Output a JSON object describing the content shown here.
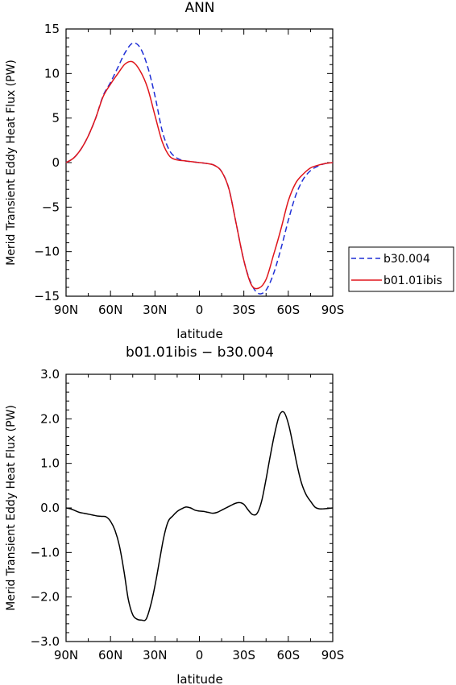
{
  "chart_data": [
    {
      "type": "line",
      "title": "ANN",
      "xlabel": "latitude",
      "ylabel": "Merid Transient Eddy Heat Flux (PW)",
      "x_ticks": [
        "90N",
        "60N",
        "30N",
        "0",
        "30S",
        "60S",
        "90S"
      ],
      "y_ticks": [
        "15",
        "10",
        "5",
        "0",
        "−5",
        "−10",
        "−15"
      ],
      "xlim": [
        90,
        -90
      ],
      "ylim": [
        -15,
        15
      ],
      "legend": "outside-right",
      "series": [
        {
          "name": "b30.004",
          "color": "#1f2fd6",
          "dash": "dashed",
          "x": [
            90,
            85,
            80,
            75,
            70,
            65,
            60,
            55,
            50,
            45,
            40,
            35,
            30,
            25,
            20,
            15,
            10,
            5,
            0,
            -5,
            -10,
            -15,
            -20,
            -25,
            -30,
            -35,
            -40,
            -45,
            -50,
            -55,
            -60,
            -65,
            -70,
            -75,
            -80,
            -85,
            -90
          ],
          "y": [
            0,
            0.5,
            1.5,
            3,
            5,
            7.5,
            9,
            10.7,
            12.4,
            13.4,
            12.9,
            10.8,
            7.5,
            3.5,
            1.3,
            0.5,
            0.2,
            0.1,
            0,
            -0.1,
            -0.3,
            -1,
            -3,
            -7,
            -11,
            -13.6,
            -14.7,
            -14.3,
            -12.5,
            -9.7,
            -6.5,
            -3.7,
            -1.9,
            -0.9,
            -0.4,
            -0.1,
            0
          ]
        },
        {
          "name": "b01.01ibis",
          "color": "#e0151b",
          "dash": "solid",
          "x": [
            90,
            85,
            80,
            75,
            70,
            65,
            60,
            55,
            50,
            45,
            40,
            35,
            30,
            25,
            20,
            15,
            10,
            5,
            0,
            -5,
            -10,
            -15,
            -20,
            -25,
            -30,
            -35,
            -40,
            -45,
            -50,
            -55,
            -60,
            -65,
            -70,
            -75,
            -80,
            -85,
            -90
          ],
          "y": [
            0,
            0.5,
            1.5,
            3,
            5,
            7.4,
            8.8,
            10,
            11.1,
            11.3,
            10.3,
            8.4,
            5.3,
            2.3,
            0.7,
            0.3,
            0.2,
            0.1,
            0,
            -0.1,
            -0.3,
            -1,
            -3,
            -7,
            -11,
            -13.7,
            -14.1,
            -13.1,
            -10.4,
            -7.5,
            -4.3,
            -2.3,
            -1.3,
            -0.6,
            -0.3,
            -0.1,
            0
          ]
        }
      ]
    },
    {
      "type": "line",
      "title": "b01.01ibis − b30.004",
      "xlabel": "latitude",
      "ylabel": "Merid Transient Eddy Heat Flux (PW)",
      "x_ticks": [
        "90N",
        "60N",
        "30N",
        "0",
        "30S",
        "60S",
        "90S"
      ],
      "y_ticks": [
        "3.0",
        "2.0",
        "1.0",
        "0.0",
        "−1.0",
        "−2.0",
        "−3.0"
      ],
      "xlim": [
        90,
        -90
      ],
      "ylim": [
        -3,
        3
      ],
      "series": [
        {
          "color": "#000000",
          "dash": "solid",
          "x": [
            90,
            87,
            84,
            81,
            78,
            75,
            72,
            69,
            66,
            63,
            60,
            57,
            54,
            51,
            48,
            45,
            42,
            39,
            36,
            33,
            30,
            27,
            24,
            21,
            18,
            15,
            12,
            9,
            6,
            3,
            0,
            -3,
            -6,
            -9,
            -12,
            -15,
            -18,
            -21,
            -24,
            -27,
            -30,
            -33,
            -36,
            -39,
            -42,
            -45,
            -48,
            -51,
            -54,
            -57,
            -60,
            -63,
            -66,
            -69,
            -72,
            -75,
            -78,
            -81,
            -84,
            -87,
            -90
          ],
          "y": [
            0,
            -0.02,
            -0.06,
            -0.1,
            -0.12,
            -0.14,
            -0.16,
            -0.18,
            -0.19,
            -0.2,
            -0.3,
            -0.5,
            -0.85,
            -1.4,
            -2.05,
            -2.4,
            -2.5,
            -2.52,
            -2.5,
            -2.2,
            -1.75,
            -1.2,
            -0.65,
            -0.3,
            -0.18,
            -0.08,
            -0.02,
            0.02,
            0,
            -0.05,
            -0.07,
            -0.08,
            -0.1,
            -0.12,
            -0.1,
            -0.05,
            0,
            0.05,
            0.1,
            0.12,
            0.08,
            -0.05,
            -0.15,
            -0.12,
            0.15,
            0.65,
            1.2,
            1.7,
            2.08,
            2.15,
            1.9,
            1.45,
            0.95,
            0.55,
            0.3,
            0.15,
            0.02,
            -0.02,
            -0.02,
            -0.01,
            0
          ]
        }
      ]
    }
  ]
}
